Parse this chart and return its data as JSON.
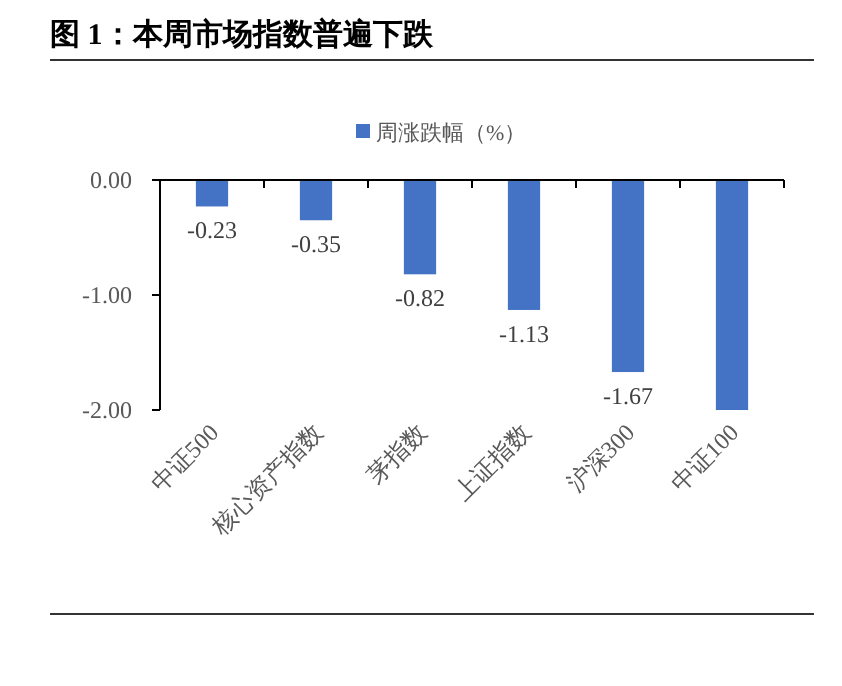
{
  "chart_data": {
    "type": "bar",
    "title": "图 1：本周市场指数普遍下跌",
    "categories": [
      "中证500",
      "核心资产指数",
      "茅指数",
      "上证指数",
      "沪深300",
      "中证100"
    ],
    "series": [
      {
        "name": "周涨跌幅（%）",
        "color": "#4472c4",
        "values": [
          -0.23,
          -0.35,
          -0.82,
          -1.13,
          -1.67,
          -2.0
        ]
      }
    ],
    "value_labels": [
      "-0.23",
      "-0.35",
      "-0.82",
      "-1.13",
      "-1.67",
      null
    ],
    "ylim": [
      -2,
      0
    ],
    "yticks": [
      {
        "value": 0,
        "label": "0.00"
      },
      {
        "value": -1,
        "label": "-1.00"
      },
      {
        "value": -2,
        "label": "-2.00"
      }
    ],
    "grid": false,
    "legend": "top"
  }
}
